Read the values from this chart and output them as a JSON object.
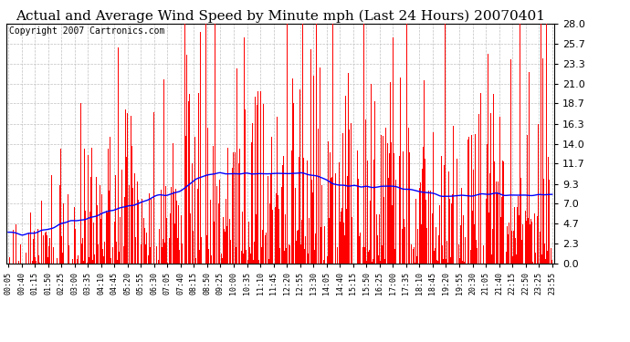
{
  "title": "Actual and Average Wind Speed by Minute mph (Last 24 Hours) 20070401",
  "copyright": "Copyright 2007 Cartronics.com",
  "yticks": [
    0.0,
    2.3,
    4.7,
    7.0,
    9.3,
    11.7,
    14.0,
    16.3,
    18.7,
    21.0,
    23.3,
    25.7,
    28.0
  ],
  "ylim": [
    0.0,
    28.0
  ],
  "bar_color": "#FF0000",
  "line_color": "#0000FF",
  "background_color": "#FFFFFF",
  "grid_color": "#C0C0C0",
  "xtick_labels": [
    "00:05",
    "00:40",
    "01:15",
    "01:50",
    "02:25",
    "03:00",
    "03:35",
    "04:10",
    "04:45",
    "05:20",
    "05:55",
    "06:30",
    "07:05",
    "07:40",
    "08:15",
    "08:50",
    "09:25",
    "10:00",
    "10:35",
    "11:10",
    "11:45",
    "12:20",
    "12:55",
    "13:30",
    "14:05",
    "14:40",
    "15:15",
    "15:50",
    "16:25",
    "17:00",
    "17:35",
    "18:10",
    "18:45",
    "19:20",
    "19:55",
    "20:30",
    "21:05",
    "21:40",
    "22:15",
    "22:50",
    "23:25",
    "23:55"
  ],
  "title_fontsize": 11,
  "copyright_fontsize": 7,
  "ytick_fontsize": 8,
  "xtick_fontsize": 6
}
